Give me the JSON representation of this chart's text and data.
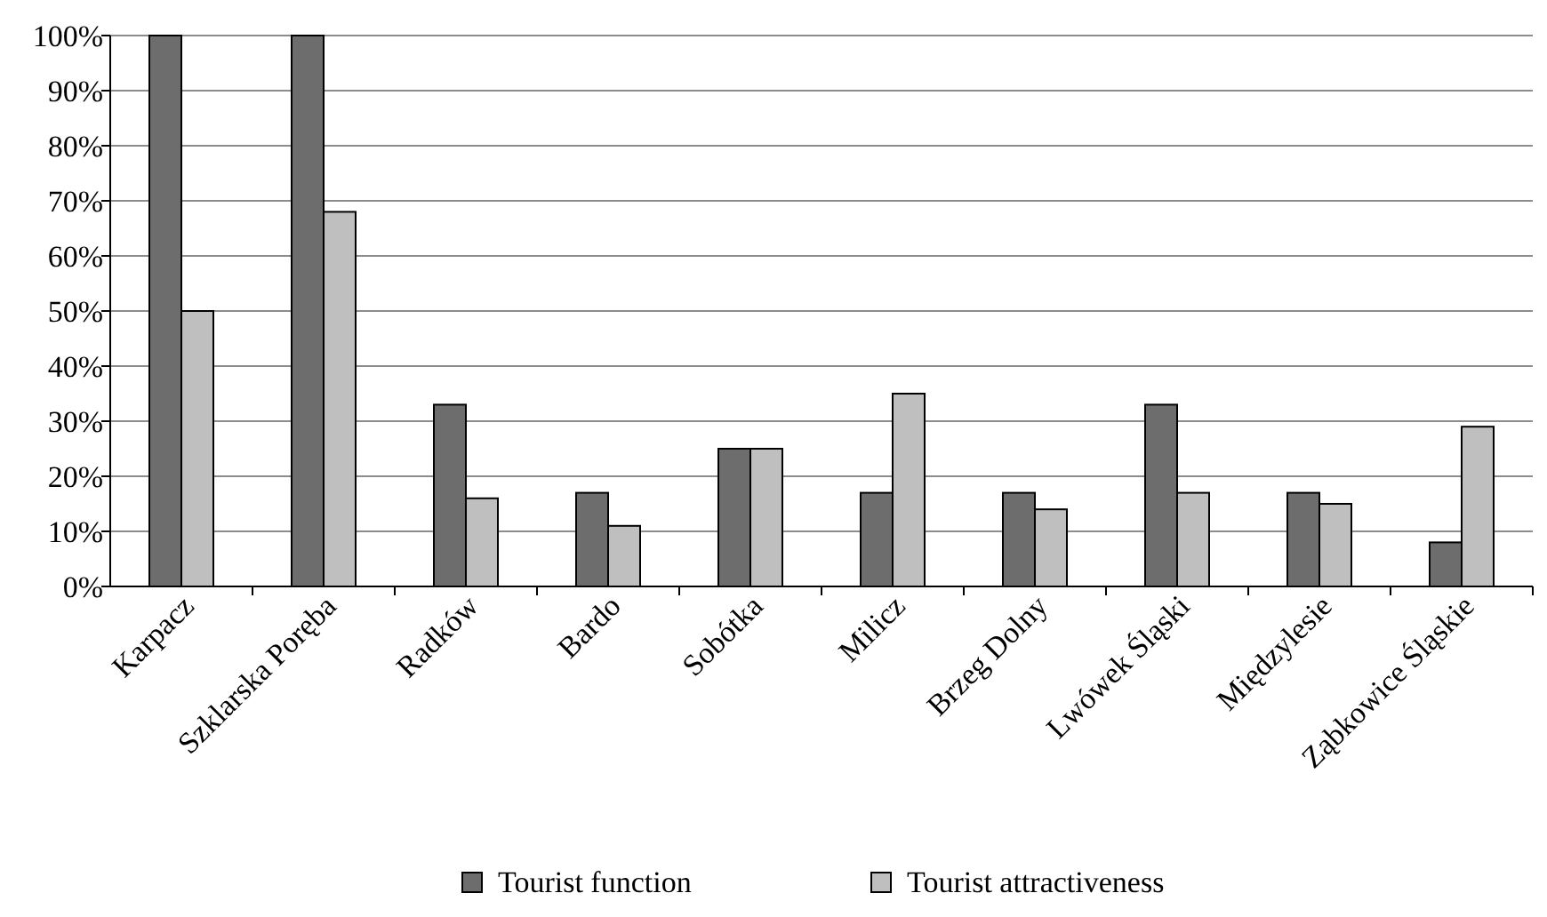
{
  "chart_data": {
    "type": "bar",
    "categories": [
      "Karpacz",
      "Szklarska Poręba",
      "Radków",
      "Bardo",
      "Sobótka",
      "Milicz",
      "Brzeg Dolny",
      "Lwówek Śląski",
      "Międzylesie",
      "Ząbkowice Śląskie"
    ],
    "series": [
      {
        "name": "Tourist function",
        "color": "#6d6d6d",
        "values": [
          100,
          100,
          33,
          17,
          25,
          17,
          17,
          33,
          17,
          8
        ]
      },
      {
        "name": "Tourist attractiveness",
        "color": "#bfbfbf",
        "values": [
          50,
          68,
          16,
          11,
          25,
          35,
          14,
          17,
          15,
          29
        ]
      }
    ],
    "ylim": [
      0,
      100
    ],
    "yticks": [
      {
        "value": 0,
        "label": "0%"
      },
      {
        "value": 10,
        "label": "10%"
      },
      {
        "value": 20,
        "label": "20%"
      },
      {
        "value": 30,
        "label": "30%"
      },
      {
        "value": 40,
        "label": "40%"
      },
      {
        "value": 50,
        "label": "50%"
      },
      {
        "value": 60,
        "label": "60%"
      },
      {
        "value": 70,
        "label": "70%"
      },
      {
        "value": 80,
        "label": "80%"
      },
      {
        "value": 90,
        "label": "90%"
      },
      {
        "value": 100,
        "label": "100%"
      }
    ],
    "grid": "y",
    "legend": "bottom"
  }
}
